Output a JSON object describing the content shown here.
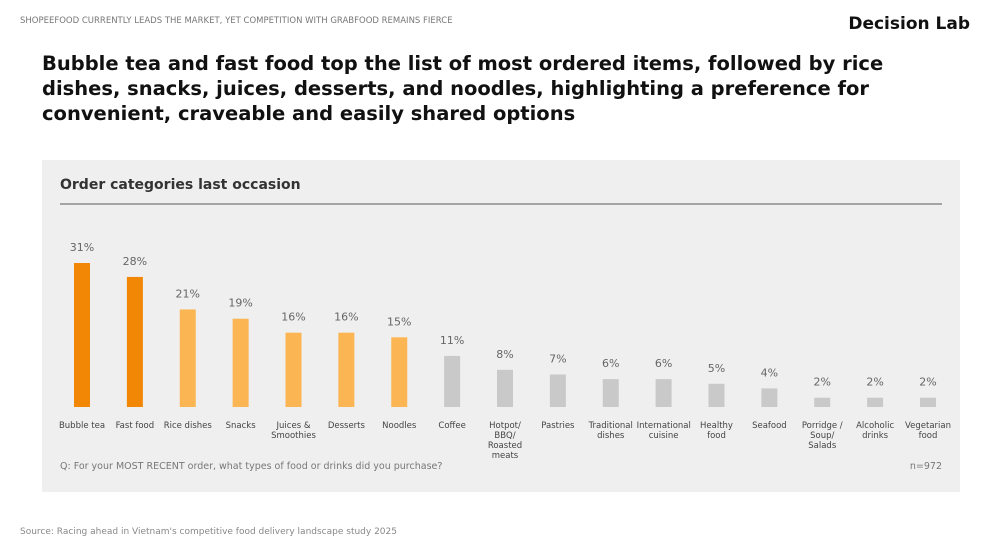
{
  "kicker": "SHOPEEFOOD CURRENTLY LEADS THE MARKET, YET COMPETITION WITH GRABFOOD REMAINS FIERCE",
  "brand": "Decision Lab",
  "headline": "Bubble tea and fast food top the list of most ordered items, followed by rice dishes, snacks, juices, desserts, and noodles, highlighting a preference for convenient, craveable and easily shared options",
  "source": "Source: Racing ahead in Vietnam's competitive food delivery landscape study 2025",
  "chart_data": {
    "type": "bar",
    "title": "Order categories last occasion",
    "categories": [
      "Bubble tea",
      "Fast food",
      "Rice dishes",
      "Snacks",
      "Juices & Smoothies",
      "Desserts",
      "Noodles",
      "Coffee",
      "Hotpot/ BBQ/ Roasted meats",
      "Pastries",
      "Traditional dishes",
      "International cuisine",
      "Healthy food",
      "Seafood",
      "Porridge / Soup/ Salads",
      "Alcoholic drinks",
      "Vegetarian food"
    ],
    "values": [
      31,
      28,
      21,
      19,
      16,
      16,
      15,
      11,
      8,
      7,
      6,
      6,
      5,
      4,
      2,
      2,
      2
    ],
    "value_labels": [
      "31%",
      "28%",
      "21%",
      "19%",
      "16%",
      "16%",
      "15%",
      "11%",
      "8%",
      "7%",
      "6%",
      "6%",
      "5%",
      "4%",
      "2%",
      "2%",
      "2%"
    ],
    "colors": [
      "#f28705",
      "#f28705",
      "#fbb552",
      "#fbb552",
      "#fbb552",
      "#fbb552",
      "#fbb552",
      "#c9c9c9",
      "#c9c9c9",
      "#c9c9c9",
      "#c9c9c9",
      "#c9c9c9",
      "#c9c9c9",
      "#c9c9c9",
      "#c9c9c9",
      "#c9c9c9",
      "#c9c9c9"
    ],
    "question": "Q: For your MOST RECENT order, what types of food or drinks did you purchase?",
    "sample": "n=972"
  }
}
